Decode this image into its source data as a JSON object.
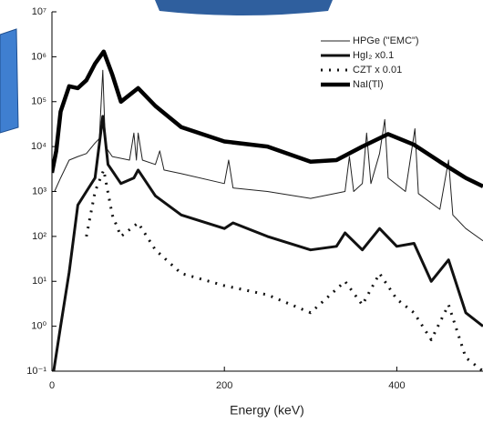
{
  "chart_data": {
    "type": "line",
    "x_label": "Energy (keV)",
    "yscale": "log",
    "xlim": [
      0,
      500
    ],
    "xticks": [
      0,
      200,
      400
    ],
    "ylim": [
      0.1,
      10000000
    ],
    "yticks": [
      {
        "value": 0.1,
        "label": "10⁻¹"
      },
      {
        "value": 1,
        "label": "10⁰"
      },
      {
        "value": 10,
        "label": "10¹"
      },
      {
        "value": 100,
        "label": "10²"
      },
      {
        "value": 1000,
        "label": "10³"
      },
      {
        "value": 10000,
        "label": "10⁴"
      },
      {
        "value": 100000,
        "label": "10⁵"
      },
      {
        "value": 1000000,
        "label": "10⁶"
      },
      {
        "value": 10000000,
        "label": "10⁷"
      }
    ],
    "legend": "top-right",
    "series": [
      {
        "name": "HPGe (\"EMC\")",
        "color": "#222222",
        "line_width": 1,
        "dash": "none",
        "x": [
          3,
          10,
          20,
          30,
          40,
          50,
          55,
          59,
          62,
          70,
          90,
          95,
          98,
          100,
          105,
          120,
          125,
          130,
          150,
          200,
          205,
          210,
          250,
          300,
          340,
          345,
          350,
          360,
          365,
          370,
          380,
          386,
          390,
          410,
          421,
          425,
          450,
          460,
          465,
          480,
          500
        ],
        "values": [
          1000,
          2000,
          5000,
          6000,
          7000,
          12000,
          15000,
          500000,
          10000,
          6000,
          5000,
          20000,
          5000,
          20000,
          5000,
          4000,
          8000,
          3000,
          2500,
          1500,
          5000,
          1200,
          1000,
          700,
          1000,
          6000,
          1000,
          1500,
          20000,
          1500,
          7000,
          40000,
          2000,
          1000,
          25000,
          900,
          400,
          5000,
          300,
          150,
          80
        ]
      },
      {
        "name": "HgI₂ x0.1",
        "color": "#111111",
        "line_width": 3,
        "dash": "none",
        "x": [
          2,
          10,
          20,
          30,
          40,
          50,
          59,
          65,
          80,
          95,
          100,
          120,
          150,
          200,
          210,
          250,
          300,
          330,
          340,
          360,
          380,
          400,
          420,
          440,
          460,
          480,
          500
        ],
        "values": [
          0.1,
          1,
          16,
          500,
          1000,
          2000,
          47000,
          4000,
          1500,
          2000,
          3000,
          800,
          300,
          150,
          200,
          100,
          50,
          60,
          120,
          50,
          150,
          60,
          70,
          10,
          30,
          2,
          1
        ]
      },
      {
        "name": "CZT x 0.01",
        "color": "#111111",
        "line_width": 3,
        "dash": "2 7",
        "x": [
          40,
          50,
          60,
          70,
          80,
          100,
          120,
          150,
          200,
          250,
          300,
          340,
          360,
          380,
          400,
          420,
          440,
          460,
          480,
          500
        ],
        "values": [
          100,
          1000,
          3000,
          300,
          100,
          200,
          50,
          15,
          8,
          5,
          2,
          10,
          3,
          15,
          4,
          2,
          0.5,
          3,
          0.2,
          0.1
        ]
      },
      {
        "name": "NaI(Tl)",
        "color": "#000000",
        "line_width": 4.5,
        "dash": "none",
        "x": [
          0,
          5,
          10,
          20,
          30,
          40,
          50,
          60,
          70,
          80,
          100,
          120,
          150,
          200,
          250,
          300,
          330,
          360,
          390,
          420,
          450,
          480,
          500
        ],
        "values": [
          2600,
          8000,
          60000,
          220000,
          200000,
          300000,
          700000,
          1300000,
          400000,
          100000,
          200000,
          80000,
          27000,
          13000,
          10000,
          4600,
          5000,
          10000,
          19000,
          11000,
          4600,
          2000,
          1300
        ]
      }
    ]
  }
}
